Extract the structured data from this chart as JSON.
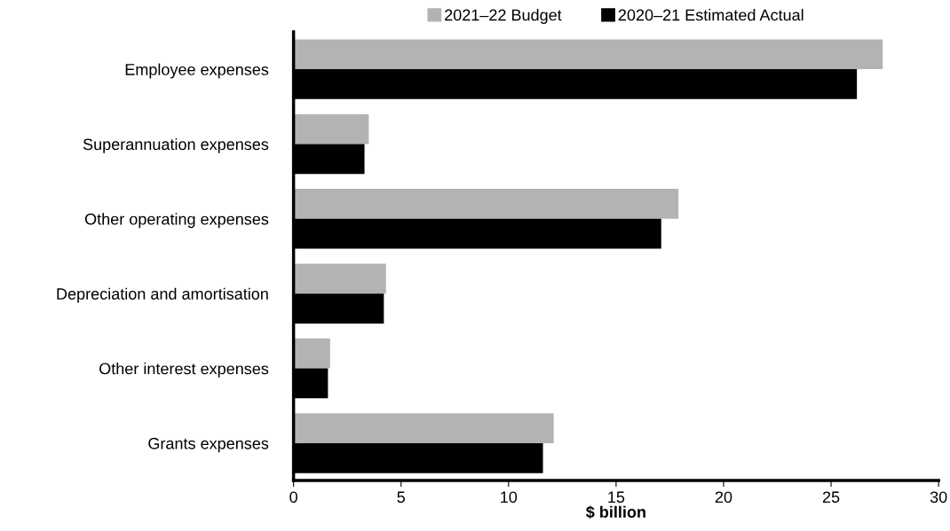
{
  "chart_data": {
    "type": "bar",
    "orientation": "horizontal",
    "xlabel": "$ billion",
    "categories": [
      "Employee expenses",
      "Superannuation expenses",
      "Other operating expenses",
      "Depreciation and amortisation",
      "Other interest expenses",
      "Grants expenses"
    ],
    "series": [
      {
        "name": "2021–22 Budget",
        "color": "#b3b3b3",
        "values": [
          27.4,
          3.5,
          17.9,
          4.3,
          1.7,
          12.1
        ]
      },
      {
        "name": "2020–21 Estimated Actual",
        "color": "#000000",
        "values": [
          26.2,
          3.3,
          17.1,
          4.2,
          1.6,
          11.6
        ]
      }
    ],
    "xlim": [
      0,
      30
    ],
    "xticks": [
      0,
      5,
      10,
      15,
      20,
      25,
      30
    ],
    "grid": false,
    "legend": "top"
  }
}
